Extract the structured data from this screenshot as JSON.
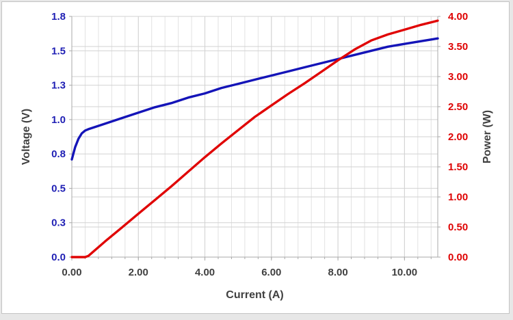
{
  "chart_data": {
    "type": "line",
    "title": "",
    "legend": "none",
    "grid": {
      "minor_color": "#E2E2E2",
      "major_color": "#D2D2D2",
      "axis_color": "#A9A9A9"
    },
    "x_axis": {
      "label": "Current (A)",
      "min": 0,
      "max": 11,
      "major_unit": 2,
      "minor_unit": 0.4,
      "tick_values": [
        0,
        2,
        4,
        6,
        8,
        10
      ],
      "tick_labels": [
        "0.00",
        "2.00",
        "4.00",
        "6.00",
        "8.00",
        "10.00"
      ],
      "tick_color": "#404040"
    },
    "y_left": {
      "label": "Voltage (V)",
      "min": 0,
      "max": 1.75,
      "major_unit": 0.25,
      "tick_values": [
        0,
        0.25,
        0.5,
        0.75,
        1.0,
        1.25,
        1.5,
        1.75
      ],
      "tick_labels": [
        "0.0",
        "0.3",
        "0.5",
        "0.8",
        "1.0",
        "1.3",
        "1.5",
        "1.8"
      ],
      "tick_color": "#1F1FB4"
    },
    "y_right": {
      "label": "Power (W)",
      "min": 0,
      "max": 4,
      "major_unit": 0.5,
      "tick_values": [
        0,
        0.5,
        1.0,
        1.5,
        2.0,
        2.5,
        3.0,
        3.5,
        4.0
      ],
      "tick_labels": [
        "0.00",
        "0.50",
        "1.00",
        "1.50",
        "2.00",
        "2.50",
        "3.00",
        "3.50",
        "4.00"
      ],
      "tick_color": "#DE0202"
    },
    "series": [
      {
        "name": "Voltage",
        "axis": "left",
        "color": "#1414B8",
        "points": [
          [
            0,
            0.71
          ],
          [
            0.1,
            0.8
          ],
          [
            0.2,
            0.86
          ],
          [
            0.3,
            0.9
          ],
          [
            0.4,
            0.92
          ],
          [
            0.5,
            0.93
          ],
          [
            0.75,
            0.95
          ],
          [
            1,
            0.97
          ],
          [
            1.5,
            1.01
          ],
          [
            2,
            1.05
          ],
          [
            2.5,
            1.09
          ],
          [
            3,
            1.12
          ],
          [
            3.5,
            1.16
          ],
          [
            4,
            1.19
          ],
          [
            4.5,
            1.23
          ],
          [
            5,
            1.26
          ],
          [
            5.5,
            1.29
          ],
          [
            6,
            1.32
          ],
          [
            6.5,
            1.35
          ],
          [
            7,
            1.38
          ],
          [
            7.5,
            1.41
          ],
          [
            8,
            1.44
          ],
          [
            8.5,
            1.47
          ],
          [
            9,
            1.5
          ],
          [
            9.5,
            1.53
          ],
          [
            10,
            1.55
          ],
          [
            10.5,
            1.57
          ],
          [
            11,
            1.59
          ]
        ]
      },
      {
        "name": "Power",
        "axis": "right",
        "color": "#E00404",
        "points": [
          [
            0,
            0
          ],
          [
            0.4,
            0
          ],
          [
            0.5,
            0.02
          ],
          [
            1,
            0.26
          ],
          [
            1.5,
            0.49
          ],
          [
            2,
            0.72
          ],
          [
            2.5,
            0.95
          ],
          [
            3,
            1.18
          ],
          [
            3.5,
            1.42
          ],
          [
            4,
            1.66
          ],
          [
            4.5,
            1.89
          ],
          [
            5,
            2.11
          ],
          [
            5.5,
            2.33
          ],
          [
            6,
            2.52
          ],
          [
            6.5,
            2.71
          ],
          [
            7,
            2.89
          ],
          [
            7.5,
            3.08
          ],
          [
            8,
            3.27
          ],
          [
            8.5,
            3.45
          ],
          [
            9,
            3.6
          ],
          [
            9.5,
            3.7
          ],
          [
            10,
            3.78
          ],
          [
            10.5,
            3.86
          ],
          [
            11,
            3.93
          ]
        ]
      }
    ]
  }
}
